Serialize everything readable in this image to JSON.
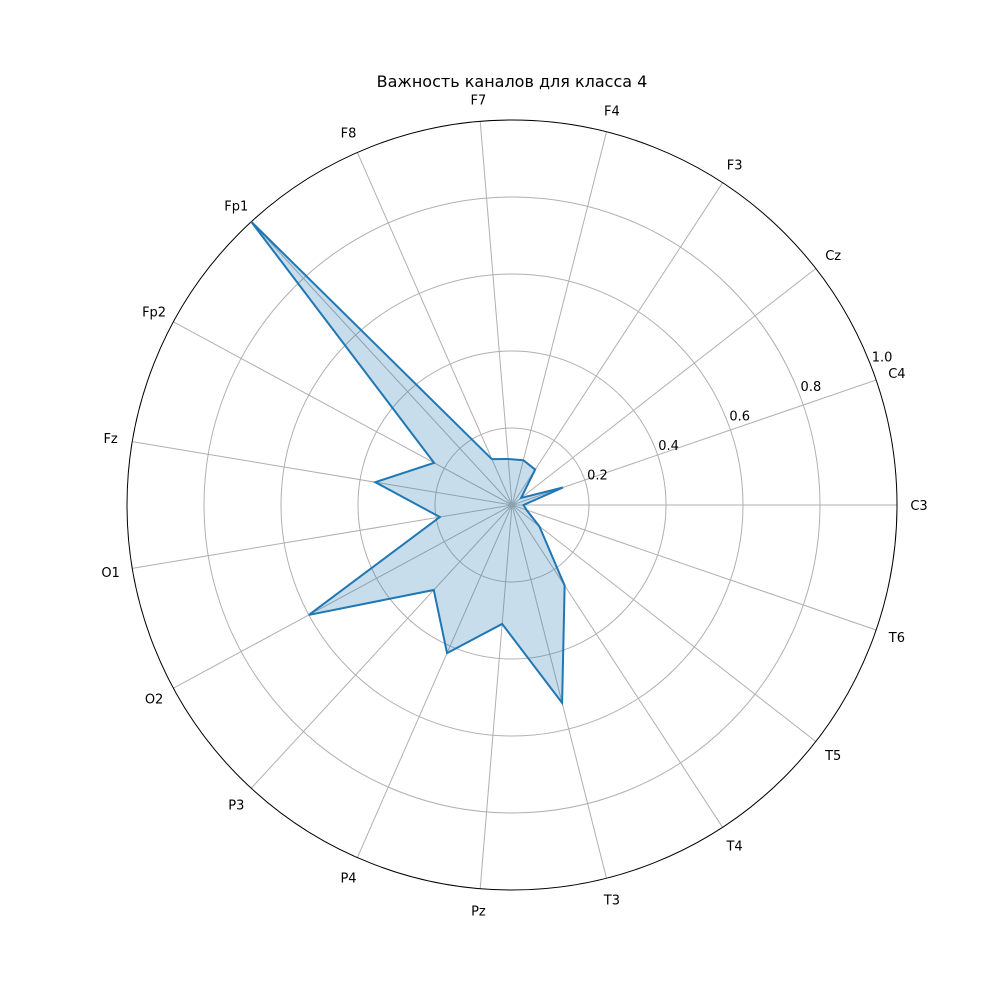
{
  "chart_data": {
    "type": "radar",
    "title": "Важность каналов для класса 4",
    "categories": [
      "C3",
      "C4",
      "Cz",
      "F3",
      "F4",
      "F7",
      "F8",
      "Fp1",
      "Fp2",
      "Fz",
      "O1",
      "O2",
      "P3",
      "P4",
      "Pz",
      "T3",
      "T4",
      "T5",
      "T6"
    ],
    "series": [
      {
        "values": [
          0.03,
          0.14,
          0.03,
          0.11,
          0.12,
          0.12,
          0.13,
          1.0,
          0.23,
          0.36,
          0.19,
          0.6,
          0.3,
          0.42,
          0.31,
          0.53,
          0.25,
          0.09,
          0.04
        ],
        "color": "#1f77b4",
        "fill": "#1f77b4",
        "fill_opacity": 0.25
      }
    ],
    "r_ticks": [
      "0.2",
      "0.4",
      "0.6",
      "0.8",
      "1.0"
    ],
    "rlim": [
      0,
      1.0
    ],
    "grid": true,
    "direction": "counterclockwise",
    "start_category_position": "right",
    "colors": {
      "line": "#1f77b4",
      "grid": "#b0b0b0",
      "frame": "#000000"
    }
  }
}
